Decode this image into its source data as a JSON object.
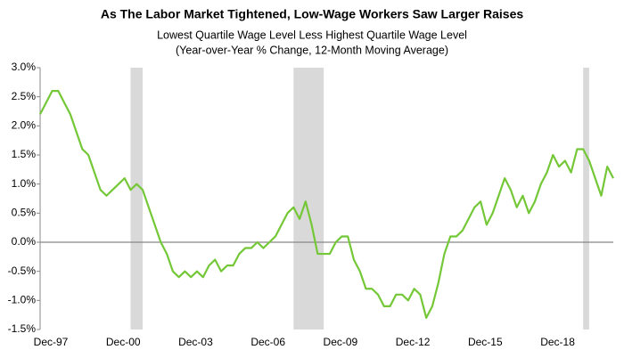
{
  "chart_data": {
    "type": "line",
    "title": "As The Labor Market Tightened, Low-Wage Workers Saw Larger Raises",
    "subtitle": [
      "Lowest Quartile Wage Level Less Highest Quartile Wage Level",
      "(Year-over-Year % Change, 12-Month Moving Average)"
    ],
    "categories": [
      "Dec-97",
      null,
      null,
      null,
      null,
      null,
      null,
      null,
      null,
      null,
      null,
      null,
      "Dec-00",
      null,
      null,
      null,
      null,
      null,
      null,
      null,
      null,
      null,
      null,
      null,
      "Dec-03",
      null,
      null,
      null,
      null,
      null,
      null,
      null,
      null,
      null,
      null,
      null,
      "Dec-06",
      null,
      null,
      null,
      null,
      null,
      null,
      null,
      null,
      null,
      null,
      null,
      "Dec-09",
      null,
      null,
      null,
      null,
      null,
      null,
      null,
      null,
      null,
      null,
      null,
      "Dec-12",
      null,
      null,
      null,
      null,
      null,
      null,
      null,
      null,
      null,
      null,
      null,
      "Dec-15",
      null,
      null,
      null,
      null,
      null,
      null,
      null,
      null,
      null,
      null,
      null,
      "Dec-18",
      null,
      null,
      null,
      null,
      null,
      null,
      null,
      null,
      null,
      null,
      null
    ],
    "values": [
      2.2,
      2.4,
      2.6,
      2.6,
      2.4,
      2.2,
      1.9,
      1.6,
      1.5,
      1.2,
      0.9,
      0.8,
      0.9,
      1.0,
      1.1,
      0.9,
      1.0,
      0.9,
      0.6,
      0.3,
      0.0,
      -0.2,
      -0.5,
      -0.6,
      -0.5,
      -0.6,
      -0.5,
      -0.6,
      -0.4,
      -0.3,
      -0.5,
      -0.4,
      -0.4,
      -0.2,
      -0.1,
      -0.1,
      0.0,
      -0.1,
      0.0,
      0.1,
      0.3,
      0.5,
      0.6,
      0.4,
      0.7,
      0.3,
      -0.2,
      -0.2,
      -0.2,
      0.0,
      0.1,
      0.1,
      -0.3,
      -0.5,
      -0.8,
      -0.8,
      -0.9,
      -1.1,
      -1.1,
      -0.9,
      -0.9,
      -1.0,
      -0.8,
      -0.9,
      -1.3,
      -1.1,
      -0.7,
      -0.2,
      0.1,
      0.1,
      0.2,
      0.4,
      0.6,
      0.7,
      0.3,
      0.5,
      0.8,
      1.1,
      0.9,
      0.6,
      0.8,
      0.5,
      0.7,
      1.0,
      1.2,
      1.5,
      1.3,
      1.4,
      1.2,
      1.6,
      1.6,
      1.4,
      1.1,
      0.8,
      1.3,
      1.1
    ],
    "color": "#74c837",
    "shaded_periods": [
      [
        15,
        17
      ],
      [
        42,
        47
      ],
      [
        90,
        91
      ]
    ],
    "shade_color": "#d9d9d9",
    "ylim": [
      -1.5,
      3.0
    ],
    "yticks": [
      {
        "value": -1.5,
        "label": "-1.5%"
      },
      {
        "value": -1.0,
        "label": "-1.0%"
      },
      {
        "value": -0.5,
        "label": "-0.5%"
      },
      {
        "value": 0,
        "label": "0.0%"
      },
      {
        "value": 0.5,
        "label": "0.5%"
      },
      {
        "value": 1.0,
        "label": "1.0%"
      },
      {
        "value": 1.5,
        "label": "1.5%"
      },
      {
        "value": 2.0,
        "label": "2.0%"
      },
      {
        "value": 2.5,
        "label": "2.5%"
      },
      {
        "value": 3.0,
        "label": "3.0%"
      }
    ],
    "grid": false
  }
}
